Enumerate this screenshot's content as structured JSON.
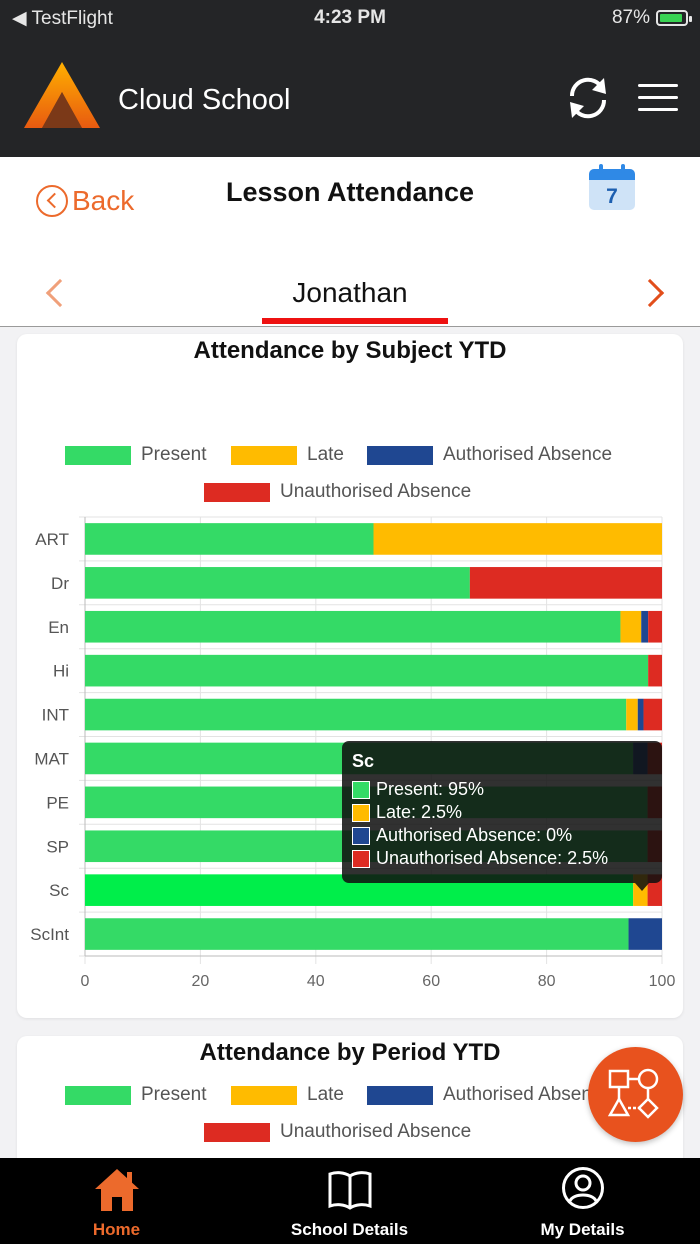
{
  "status_bar": {
    "carrier": "◀ TestFlight",
    "time": "4:23 PM",
    "battery": "87%"
  },
  "header": {
    "app_title": "Cloud School",
    "sync_icon": "sync-icon",
    "menu_icon": "hamburger-icon"
  },
  "page": {
    "back_label": "Back",
    "title": "Lesson Attendance",
    "calendar_day": "7",
    "student_name": "Jonathan"
  },
  "colors": {
    "present": "#34da66",
    "late": "#ffbb00",
    "authorised": "#1f4791",
    "unauthorised": "#dd2b22",
    "accent": "#ec6a2c",
    "highlight_present": "#00ee4a"
  },
  "legend": {
    "present": "Present",
    "late": "Late",
    "authorised": "Authorised Absence",
    "unauthorised": "Unauthorised Absence"
  },
  "chart_data": [
    {
      "type": "bar",
      "orientation": "horizontal",
      "stacked": true,
      "title": "Attendance by Subject YTD",
      "categories": [
        "ART",
        "Dr",
        "En",
        "Hi",
        "INT",
        "MAT",
        "PE",
        "SP",
        "Sc",
        "ScInt"
      ],
      "series": [
        {
          "name": "Present",
          "values": [
            50,
            66.7,
            92.8,
            97.6,
            93.8,
            95,
            97.5,
            97.5,
            95,
            94.2
          ]
        },
        {
          "name": "Late",
          "values": [
            50,
            0,
            3.6,
            0,
            2,
            0,
            0,
            0,
            2.5,
            0
          ]
        },
        {
          "name": "Authorised Absence",
          "values": [
            0,
            0,
            1.2,
            0,
            1,
            2.5,
            0,
            0,
            0,
            5.8
          ]
        },
        {
          "name": "Unauthorised Absence",
          "values": [
            0,
            33.3,
            2.4,
            2.4,
            3.2,
            2.5,
            2.5,
            2.5,
            2.5,
            0
          ]
        }
      ],
      "xlim": [
        0,
        100
      ],
      "xticks": [
        "0",
        "20",
        "40",
        "60",
        "80",
        "100"
      ],
      "grid": true,
      "legend_position": "top",
      "tooltip": {
        "category": "Sc",
        "lines": [
          "Present: 95%",
          "Late: 2.5%",
          "Authorised Absence: 0%",
          "Unauthorised Absence: 2.5%"
        ]
      }
    },
    {
      "type": "bar",
      "orientation": "horizontal",
      "stacked": true,
      "title": "Attendance by Period YTD",
      "legend_position": "top"
    }
  ],
  "fab": {
    "icon": "flowchart-icon"
  },
  "bottom_nav": [
    {
      "label": "Home",
      "icon": "home-icon",
      "active": true
    },
    {
      "label": "School Details",
      "icon": "book-icon",
      "active": false
    },
    {
      "label": "My Details",
      "icon": "user-circle-icon",
      "active": false
    }
  ]
}
